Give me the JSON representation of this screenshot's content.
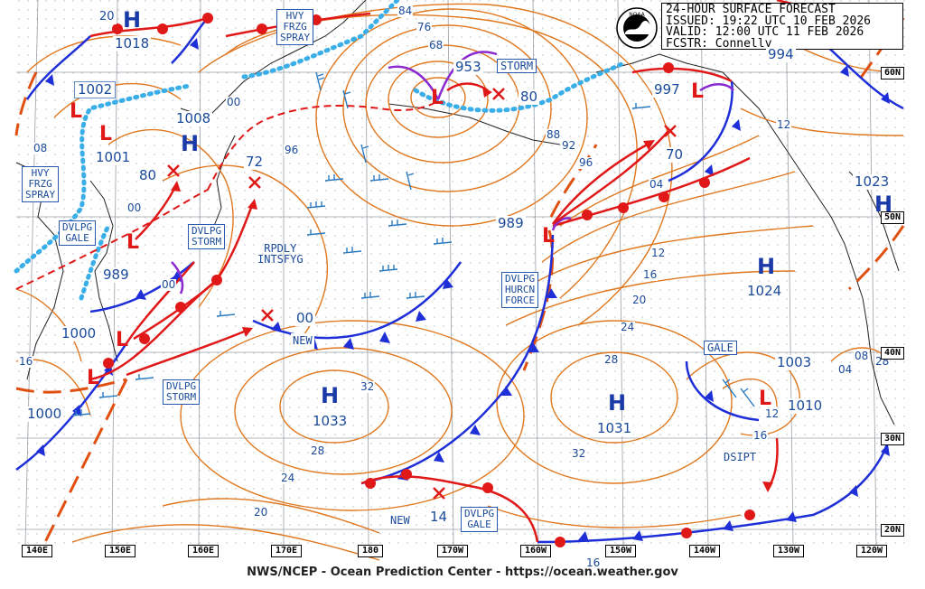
{
  "title_block": {
    "line1": "24-HOUR SURFACE FORECAST",
    "line2": "ISSUED: 19:22 UTC 10 FEB 2026",
    "line3": "VALID:  12:00 UTC 11 FEB 2026",
    "line4": "FCSTR:  Connelly"
  },
  "footer": "NWS/NCEP - Ocean Prediction Center - https://ocean.weather.gov",
  "longitude_labels": [
    "140E",
    "150E",
    "160E",
    "170E",
    "180",
    "170W",
    "160W",
    "150W",
    "140W",
    "130W",
    "120W"
  ],
  "latitude_labels": [
    "60N",
    "50N",
    "40N",
    "30N",
    "20N"
  ],
  "pressure_centers": [
    {
      "type": "H",
      "value": "1018"
    },
    {
      "type": "L",
      "value": "1002"
    },
    {
      "type": "H",
      "value": "1008"
    },
    {
      "type": "L",
      "value": "1001"
    },
    {
      "type": "L",
      "value": "989"
    },
    {
      "type": "L",
      "value": "1000"
    },
    {
      "type": "L",
      "value": "1000"
    },
    {
      "type": "L",
      "value": "953"
    },
    {
      "type": "L",
      "value": "997"
    },
    {
      "type": "L",
      "value": "989"
    },
    {
      "type": "H",
      "value": "1033"
    },
    {
      "type": "H",
      "value": "1031"
    },
    {
      "type": "H",
      "value": "1024"
    },
    {
      "type": "H",
      "value": "1023"
    },
    {
      "type": "L",
      "value": "1003"
    },
    {
      "type": "L",
      "value": "1010"
    },
    {
      "type": "L",
      "value": "994"
    }
  ],
  "forecast_positions": [
    "80",
    "72",
    "00",
    "80",
    "70",
    "14",
    "00"
  ],
  "warnings": [
    {
      "id": "hvy-frzg-1",
      "text": "HVY\nFRZG\nSPRAY"
    },
    {
      "id": "hvy-frzg-2",
      "text": "HVY\nFRZG\nSPRAY"
    },
    {
      "id": "dvlpg-gale-1",
      "text": "DVLPG\nGALE"
    },
    {
      "id": "dvlpg-storm-1",
      "text": "DVLPG\nSTORM"
    },
    {
      "id": "dvlpg-storm-2",
      "text": "DVLPG\nSTORM"
    },
    {
      "id": "storm",
      "text": "STORM"
    },
    {
      "id": "dvlpg-hurcn",
      "text": "DVLPG\nHURCN\nFORCE"
    },
    {
      "id": "gale",
      "text": "GALE"
    },
    {
      "id": "dvlpg-gale-2",
      "text": "DVLPG\nGALE"
    }
  ],
  "annotations": {
    "rapidly": "RPDLY\nINTSFYG",
    "new1": "NEW",
    "new2": "NEW",
    "dsipt": "DSIPT"
  },
  "isobar_labels": [
    "84",
    "76",
    "68",
    "88",
    "92",
    "96",
    "04",
    "08",
    "12",
    "16",
    "20",
    "24",
    "28",
    "32",
    "28",
    "24",
    "20",
    "16",
    "12",
    "08",
    "04",
    "00",
    "96",
    "16",
    "12",
    "08",
    "04",
    "16",
    "12",
    "28",
    "00",
    "16"
  ],
  "colors": {
    "isobar": "#e07820",
    "cold_front": "#1e2fd8",
    "warm_front": "#e01818",
    "occluded": "#8a2ad0",
    "trough": "#e05010",
    "ice_edge": "#3aaee8",
    "grid": "#9aa0a8",
    "label_text": "#1a4a9a"
  }
}
